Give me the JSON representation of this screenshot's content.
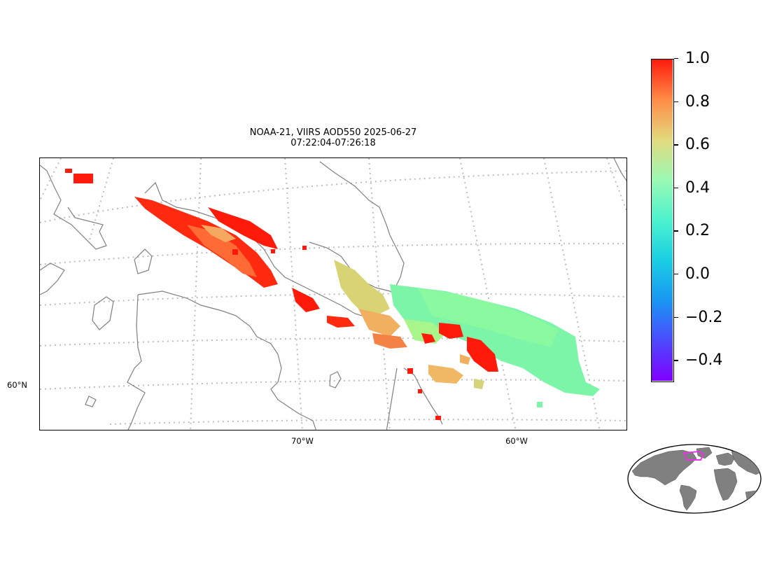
{
  "title": {
    "line1": "NOAA-21, VIIRS AOD550 2025-06-27",
    "line2": "07:22:04-07:26:18"
  },
  "map": {
    "lat_labels": [
      "60°N"
    ],
    "lon_labels": [
      "70°W",
      "60°W"
    ],
    "coastline_color": "#808080",
    "gridline_color": "#bdbdbd"
  },
  "colorbar": {
    "colormap": "rainbow",
    "min": -0.5,
    "max": 1.0,
    "ticks": [
      "1.0",
      "0.8",
      "0.6",
      "0.4",
      "0.2",
      "0.0",
      "−0.2",
      "−0.4"
    ],
    "tick_values": [
      1.0,
      0.8,
      0.6,
      0.4,
      0.2,
      0.0,
      -0.2,
      -0.4
    ]
  },
  "inset": {
    "land_color": "#808080",
    "highlight_color": "#e633e6"
  }
}
